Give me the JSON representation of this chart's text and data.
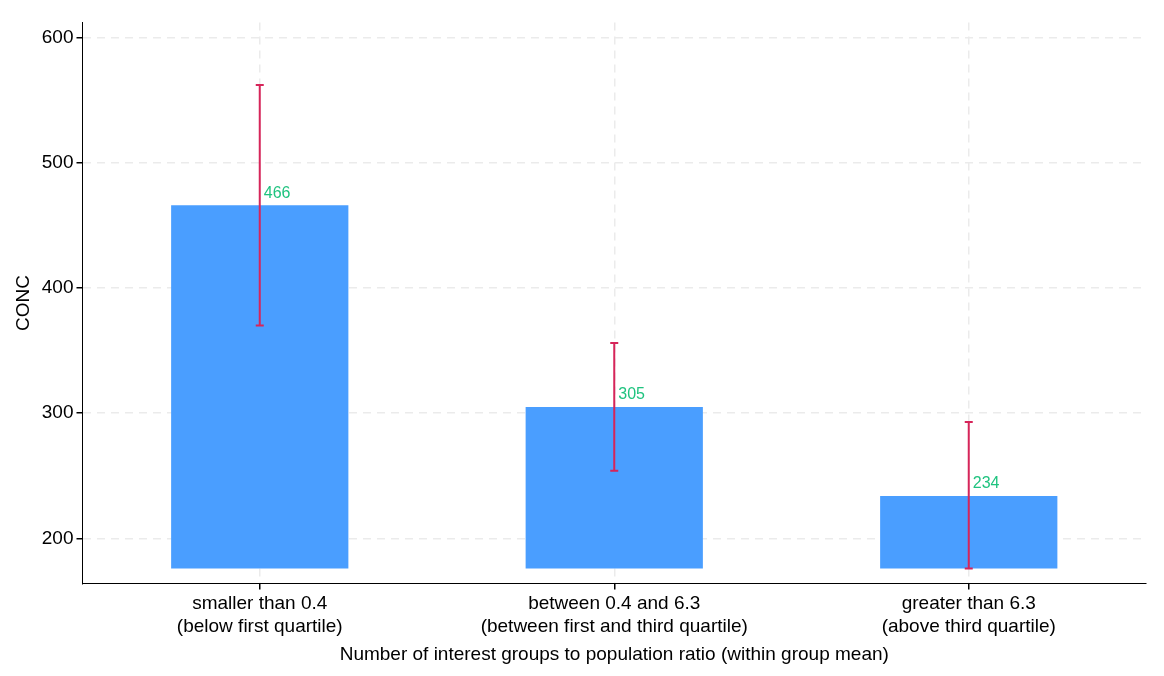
{
  "chart_data": {
    "type": "bar",
    "xlabel": "Number of interest groups to population ratio (within group mean)",
    "ylabel": "CONC",
    "categories": [
      "smaller than 0.4\n(below first quartile)",
      "between 0.4 and 6.3\n(between first and third quartile)",
      "greater than 6.3\n(above third quartile)"
    ],
    "base": [
      176,
      176,
      176
    ],
    "values": [
      290,
      129,
      58
    ],
    "value_labels": [
      "466",
      "305",
      "234"
    ],
    "errors": [
      [
        370,
        562
      ],
      [
        254,
        356
      ],
      [
        176,
        293
      ]
    ],
    "color": "#4a9eff",
    "ylim": [
      164,
      612
    ],
    "yticks": [
      200,
      300,
      400,
      500,
      600
    ],
    "grid": true
  }
}
